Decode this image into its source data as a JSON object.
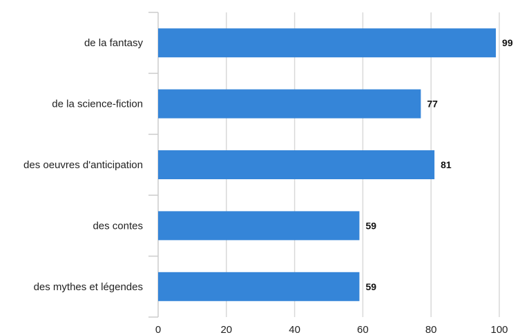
{
  "chart_data": {
    "type": "bar",
    "orientation": "horizontal",
    "categories": [
      "de la fantasy",
      "de la science-fiction",
      "des oeuvres d'anticipation",
      "des contes",
      "des mythes et légendes"
    ],
    "values": [
      99,
      77,
      81,
      59,
      59
    ],
    "value_labels": [
      "99",
      "77",
      "81",
      "59",
      "59"
    ],
    "xlim": [
      0,
      100
    ],
    "xticks": [
      0,
      20,
      40,
      60,
      80,
      100
    ],
    "xtick_labels": [
      "0",
      "20",
      "40",
      "60",
      "80",
      "100"
    ],
    "grid": true,
    "legend": "none",
    "title": "",
    "xlabel": "",
    "ylabel": "",
    "colors": {
      "bar": "#3585d8",
      "grid": "#d9d9d9",
      "axis": "#cccccc"
    }
  }
}
